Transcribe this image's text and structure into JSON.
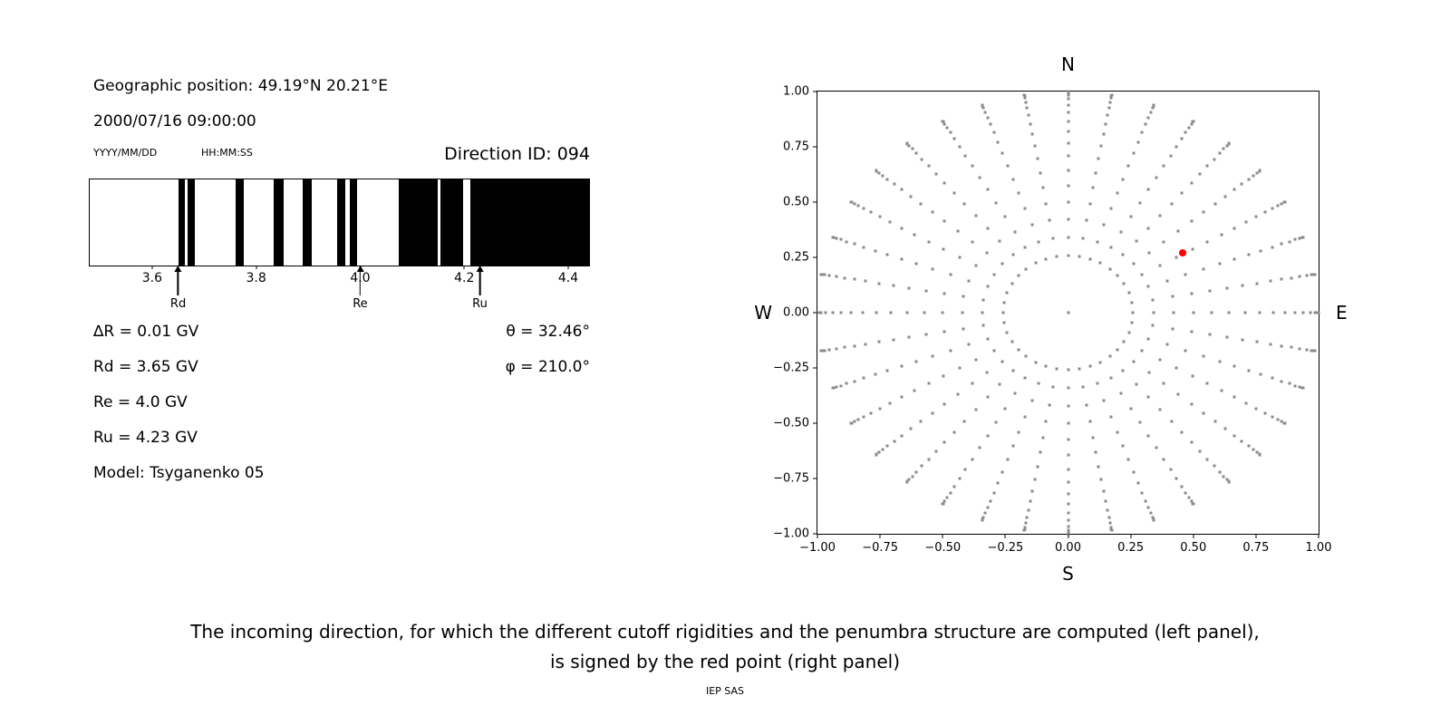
{
  "left_panel": {
    "geo_position": "Geographic position: 49.19°N 20.21°E",
    "datetime": "2000/07/16 09:00:00",
    "date_format_label": "YYYY/MM/DD",
    "time_format_label": "HH:MM:SS",
    "direction_id": "Direction ID: 094",
    "info_lines": [
      "∆R = 0.01 GV",
      "Rd = 3.65 GV",
      "Re = 4.0 GV",
      "Ru = 4.23 GV",
      "Model: Tsyganenko 05"
    ],
    "theta": "θ = 32.46°",
    "phi": "φ = 210.0°"
  },
  "caption": {
    "line1": "The incoming direction, for which the different cutoff rigidities and the penumbra structure are computed (left panel),",
    "line2": "is signed by the red point (right panel)"
  },
  "footer": "IEP SAS",
  "chart_data": [
    {
      "type": "bar",
      "name": "penumbra-structure",
      "xlim": [
        3.48,
        4.44
      ],
      "x_ticks": [
        {
          "v": 3.6,
          "label": "3.6"
        },
        {
          "v": 3.8,
          "label": "3.8"
        },
        {
          "v": 4.0,
          "label": "4.0"
        },
        {
          "v": 4.2,
          "label": "4.2"
        },
        {
          "v": 4.4,
          "label": "4.4"
        }
      ],
      "band_color": "#000000",
      "bands_gv": [
        [
          3.65,
          3.663
        ],
        [
          3.668,
          3.682
        ],
        [
          3.76,
          3.777
        ],
        [
          3.834,
          3.853
        ],
        [
          3.89,
          3.907
        ],
        [
          3.956,
          3.971
        ],
        [
          3.98,
          3.994
        ],
        [
          4.074,
          4.149
        ],
        [
          4.155,
          4.198
        ],
        [
          4.211,
          4.44
        ]
      ],
      "markers": [
        {
          "label": "Rd",
          "x": 3.65
        },
        {
          "label": "Re",
          "x": 4.0
        },
        {
          "label": "Ru",
          "x": 4.23
        }
      ]
    },
    {
      "type": "scatter",
      "name": "incoming-direction-grid",
      "xlim": [
        -1,
        1
      ],
      "ylim": [
        -1,
        1
      ],
      "x_ticks": [
        {
          "v": -1,
          "label": "−1.00"
        },
        {
          "v": -0.75,
          "label": "−0.75"
        },
        {
          "v": -0.5,
          "label": "−0.50"
        },
        {
          "v": -0.25,
          "label": "−0.25"
        },
        {
          "v": 0,
          "label": "0.00"
        },
        {
          "v": 0.25,
          "label": "0.25"
        },
        {
          "v": 0.5,
          "label": "0.50"
        },
        {
          "v": 0.75,
          "label": "0.75"
        },
        {
          "v": 1,
          "label": "1.00"
        }
      ],
      "y_ticks": [
        {
          "v": 1,
          "label": "1.00"
        },
        {
          "v": 0.75,
          "label": "0.75"
        },
        {
          "v": 0.5,
          "label": "0.50"
        },
        {
          "v": 0.25,
          "label": "0.25"
        },
        {
          "v": 0,
          "label": "0.00"
        },
        {
          "v": -0.25,
          "label": "−0.25"
        },
        {
          "v": -0.5,
          "label": "−0.50"
        },
        {
          "v": -0.75,
          "label": "−0.75"
        },
        {
          "v": -1,
          "label": "−1.00"
        }
      ],
      "compass": {
        "top": "N",
        "bottom": "S",
        "left": "W",
        "right": "E"
      },
      "grid": {
        "azimuth_start_deg": 0,
        "azimuth_step_deg": 10,
        "azimuth_count": 36,
        "zenith_min_deg": 15,
        "zenith_max_deg": 90,
        "zenith_step_deg": 5,
        "radius_rule": "sin(zenith)",
        "include_center_point": true
      },
      "dot_color": "#8a8a8a",
      "red_point": {
        "x": 0.456,
        "y": 0.269,
        "theta_deg": 32.46,
        "phi_deg": 210.0,
        "color": "#ff0000"
      }
    }
  ]
}
